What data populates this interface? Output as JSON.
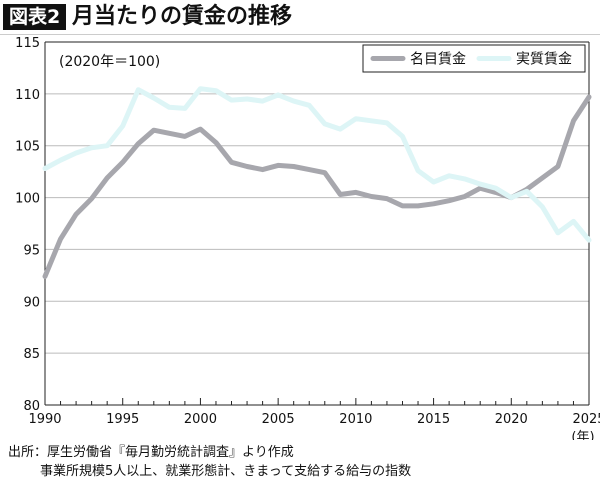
{
  "header": {
    "badge": "図表2",
    "title": "月当たりの賃金の推移"
  },
  "source": {
    "line1": "出所：厚生労働省『毎月勤労統計調査』より作成",
    "line2": "事業所規模5人以上、就業形態計、きまって支給する給与の指数"
  },
  "chart_data": {
    "type": "line",
    "annotation": "(2020年＝100)",
    "xlabel": "(年)",
    "ylabel": "",
    "xlim": [
      1990,
      2025
    ],
    "ylim": [
      80,
      115
    ],
    "yticks": [
      80,
      85,
      90,
      95,
      100,
      105,
      110,
      115
    ],
    "xticks": [
      1990,
      1995,
      2000,
      2005,
      2010,
      2015,
      2020,
      2025
    ],
    "grid": "horizontal",
    "legend": "top-right",
    "x": [
      1990,
      1991,
      1992,
      1993,
      1994,
      1995,
      1996,
      1997,
      1998,
      1999,
      2000,
      2001,
      2002,
      2003,
      2004,
      2005,
      2006,
      2007,
      2008,
      2009,
      2010,
      2011,
      2012,
      2013,
      2014,
      2015,
      2016,
      2017,
      2018,
      2019,
      2020,
      2021,
      2022,
      2023,
      2024,
      2025
    ],
    "series": [
      {
        "name": "名目賃金",
        "color": "#a7a7ad",
        "values": [
          92.4,
          96.0,
          98.4,
          99.9,
          101.9,
          103.4,
          105.2,
          106.5,
          106.2,
          105.9,
          106.6,
          105.3,
          103.4,
          103.0,
          102.7,
          103.1,
          103.0,
          102.7,
          102.4,
          100.3,
          100.5,
          100.1,
          99.9,
          99.2,
          99.2,
          99.4,
          99.7,
          100.1,
          100.9,
          100.5,
          100.0,
          100.8,
          101.9,
          103.0,
          107.4,
          109.7
        ]
      },
      {
        "name": "実質賃金",
        "color": "#ddf5f6",
        "values": [
          102.8,
          103.6,
          104.3,
          104.8,
          105.0,
          106.9,
          110.4,
          109.6,
          108.7,
          108.6,
          110.5,
          110.3,
          109.4,
          109.5,
          109.3,
          109.9,
          109.3,
          108.9,
          107.1,
          106.6,
          107.6,
          107.4,
          107.2,
          105.9,
          102.6,
          101.5,
          102.1,
          101.8,
          101.3,
          100.9,
          100.0,
          100.6,
          99.1,
          96.6,
          97.7,
          95.9
        ]
      }
    ]
  }
}
